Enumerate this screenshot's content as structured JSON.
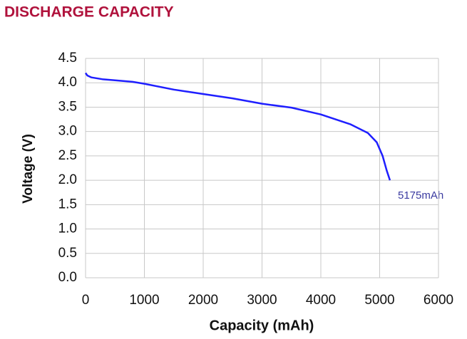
{
  "chart_data": {
    "type": "line",
    "title": "DISCHARGE CAPACITY",
    "x_label": "Capacity (mAh)",
    "y_label": "Voltage (V)",
    "annotation": "5175mAh",
    "x": [
      0,
      30,
      100,
      300,
      500,
      800,
      1000,
      1500,
      2000,
      2500,
      3000,
      3500,
      4000,
      4500,
      4800,
      4950,
      5050,
      5120,
      5175
    ],
    "series": [
      {
        "color": "#1f1fff",
        "values": [
          4.2,
          4.15,
          4.11,
          4.07,
          4.05,
          4.02,
          3.98,
          3.86,
          3.77,
          3.68,
          3.57,
          3.49,
          3.35,
          3.15,
          2.97,
          2.78,
          2.5,
          2.2,
          2.0
        ]
      }
    ],
    "xlim": [
      0,
      6000
    ],
    "xticks": [
      0,
      1000,
      2000,
      3000,
      4000,
      5000,
      6000
    ],
    "ylim": [
      0,
      4.5
    ],
    "yticks": [
      {
        "value": 0,
        "label": "0.0"
      },
      0.5,
      {
        "value": 1,
        "label": "1.0"
      },
      1.5,
      {
        "value": 2,
        "label": "2.0"
      },
      2.5,
      {
        "value": 3,
        "label": "3.0"
      },
      3.5,
      {
        "value": 4,
        "label": "4.0"
      },
      4.5
    ],
    "grid": true
  }
}
